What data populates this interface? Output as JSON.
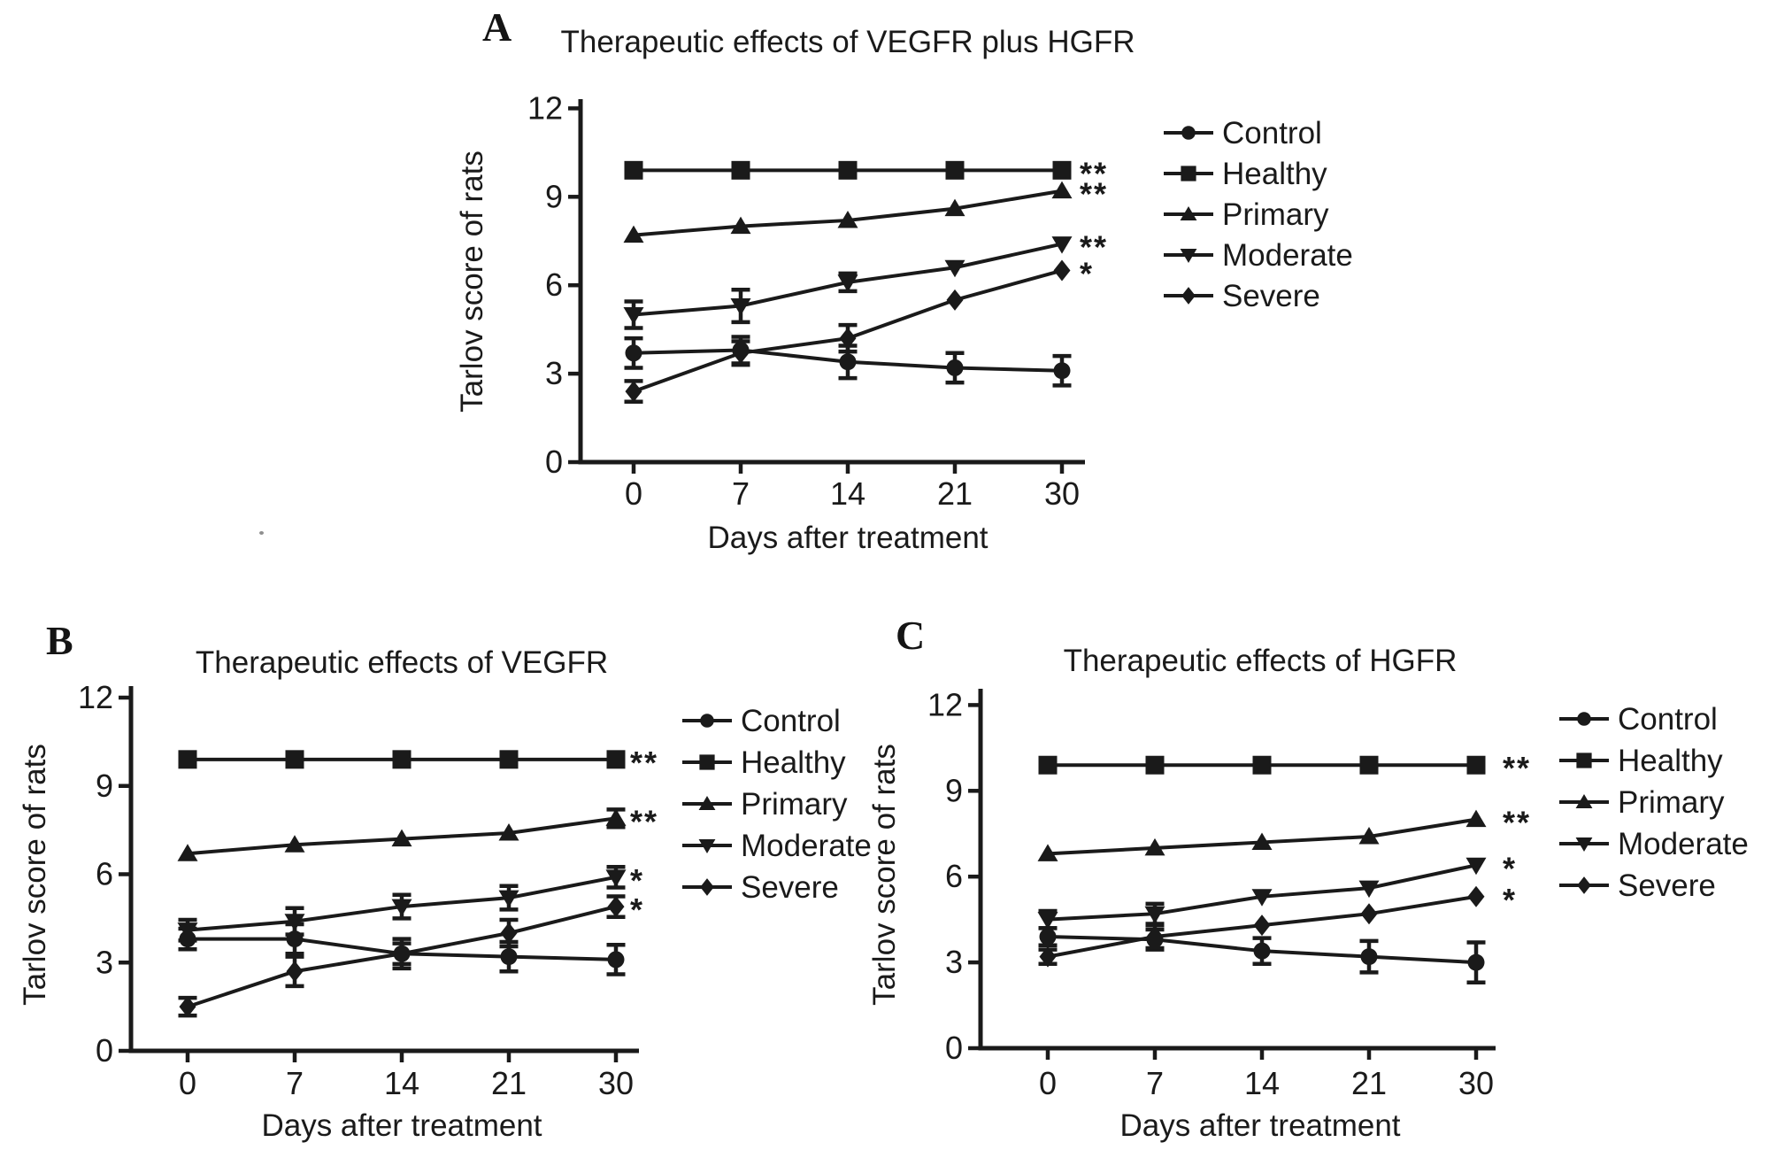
{
  "figure": {
    "panels": [
      {
        "letter": "A"
      },
      {
        "letter": "B"
      },
      {
        "letter": "C"
      }
    ]
  },
  "colors": {
    "ink": "#1a1a1a",
    "background": "#ffffff"
  },
  "chart_data": [
    {
      "type": "line",
      "panel": "A",
      "title": "Therapeutic effects of VEGFR plus HGFR",
      "xlabel": "Days after treatment",
      "ylabel": "Tarlov score of rats",
      "x": [
        0,
        7,
        14,
        21,
        30
      ],
      "ylim": [
        0,
        12
      ],
      "y_ticks": [
        0,
        3,
        6,
        9,
        12
      ],
      "grid": false,
      "legend_position": "right",
      "series": [
        {
          "name": "Control",
          "marker": "circle",
          "values": [
            3.7,
            3.8,
            3.4,
            3.2,
            3.1
          ],
          "errors": [
            0.5,
            0.45,
            0.55,
            0.5,
            0.5
          ],
          "sig": ""
        },
        {
          "name": "Healthy",
          "marker": "square",
          "values": [
            9.9,
            9.9,
            9.9,
            9.9,
            9.9
          ],
          "errors": [
            0,
            0,
            0,
            0,
            0
          ],
          "sig": "**"
        },
        {
          "name": "Primary",
          "marker": "triangle-up",
          "values": [
            7.7,
            8.0,
            8.2,
            8.6,
            9.2
          ],
          "errors": [
            0,
            0,
            0,
            0,
            0
          ],
          "sig": "**"
        },
        {
          "name": "Moderate",
          "marker": "triangle-down",
          "values": [
            5.0,
            5.3,
            6.1,
            6.6,
            7.4
          ],
          "errors": [
            0.45,
            0.55,
            0.3,
            0,
            0
          ],
          "sig": "**"
        },
        {
          "name": "Severe",
          "marker": "diamond",
          "values": [
            2.4,
            3.7,
            4.2,
            5.5,
            6.5
          ],
          "errors": [
            0.35,
            0.4,
            0.45,
            0,
            0
          ],
          "sig": "*"
        }
      ]
    },
    {
      "type": "line",
      "panel": "B",
      "title": "Therapeutic effects of VEGFR",
      "xlabel": "Days after treatment",
      "ylabel": "Tarlov score of rats",
      "x": [
        0,
        7,
        14,
        21,
        30
      ],
      "ylim": [
        0,
        12
      ],
      "y_ticks": [
        0,
        3,
        6,
        9,
        12
      ],
      "grid": false,
      "legend_position": "right",
      "series": [
        {
          "name": "Control",
          "marker": "circle",
          "values": [
            3.8,
            3.8,
            3.3,
            3.2,
            3.1
          ],
          "errors": [
            0.35,
            0.5,
            0.5,
            0.5,
            0.5
          ],
          "sig": ""
        },
        {
          "name": "Healthy",
          "marker": "square",
          "values": [
            9.9,
            9.9,
            9.9,
            9.9,
            9.9
          ],
          "errors": [
            0,
            0,
            0,
            0,
            0
          ],
          "sig": "**"
        },
        {
          "name": "Primary",
          "marker": "triangle-up",
          "values": [
            6.7,
            7.0,
            7.2,
            7.4,
            7.9
          ],
          "errors": [
            0,
            0,
            0,
            0,
            0.3
          ],
          "sig": "**"
        },
        {
          "name": "Moderate",
          "marker": "triangle-down",
          "values": [
            4.1,
            4.4,
            4.9,
            5.2,
            5.9
          ],
          "errors": [
            0.35,
            0.45,
            0.4,
            0.4,
            0.35
          ],
          "sig": "*"
        },
        {
          "name": "Severe",
          "marker": "diamond",
          "values": [
            1.5,
            2.7,
            3.3,
            4.0,
            4.9
          ],
          "errors": [
            0.3,
            0.5,
            0.35,
            0.45,
            0.35
          ],
          "sig": "*"
        }
      ]
    },
    {
      "type": "line",
      "panel": "C",
      "title": "Therapeutic effects of HGFR",
      "xlabel": "Days after treatment",
      "ylabel": "Tarlov score of rats",
      "x": [
        0,
        7,
        14,
        21,
        30
      ],
      "ylim": [
        0,
        12
      ],
      "y_ticks": [
        0,
        3,
        6,
        9,
        12
      ],
      "grid": false,
      "legend_position": "right",
      "series": [
        {
          "name": "Control",
          "marker": "circle",
          "values": [
            3.9,
            3.8,
            3.4,
            3.2,
            3.0
          ],
          "errors": [
            0.3,
            0.35,
            0.45,
            0.55,
            0.7
          ],
          "sig": ""
        },
        {
          "name": "Healthy",
          "marker": "square",
          "values": [
            9.9,
            9.9,
            9.9,
            9.9,
            9.9
          ],
          "errors": [
            0,
            0,
            0,
            0,
            0
          ],
          "sig": "**"
        },
        {
          "name": "Primary",
          "marker": "triangle-up",
          "values": [
            6.8,
            7.0,
            7.2,
            7.4,
            8.0
          ],
          "errors": [
            0,
            0,
            0,
            0,
            0
          ],
          "sig": "**"
        },
        {
          "name": "Moderate",
          "marker": "triangle-down",
          "values": [
            4.5,
            4.7,
            5.3,
            5.6,
            6.4
          ],
          "errors": [
            0.3,
            0.35,
            0,
            0,
            0
          ],
          "sig": "*"
        },
        {
          "name": "Severe",
          "marker": "diamond",
          "values": [
            3.2,
            3.9,
            4.3,
            4.7,
            5.3
          ],
          "errors": [
            0.25,
            0.4,
            0,
            0,
            0
          ],
          "sig": "*"
        }
      ]
    }
  ]
}
